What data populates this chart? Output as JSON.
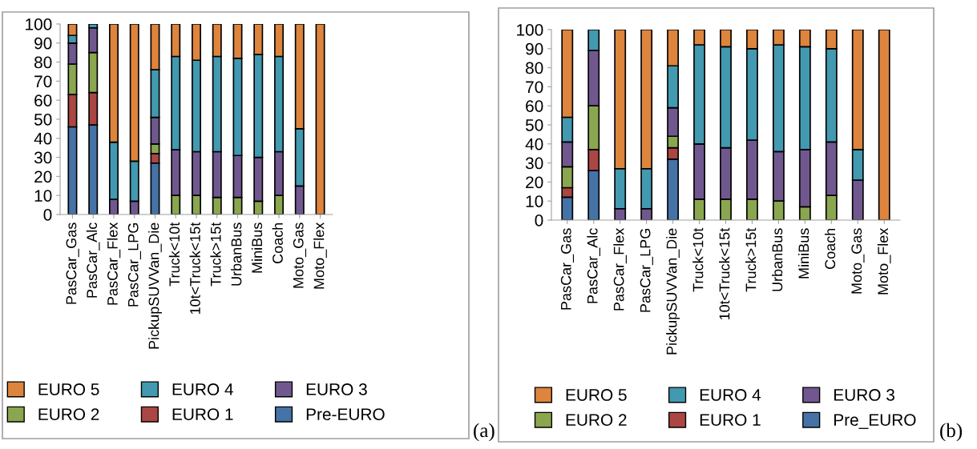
{
  "chart_data": [
    {
      "type": "bar",
      "stacked": true,
      "categories": [
        "PasCar_Gas",
        "PasCar_Alc",
        "PasCar_Flex",
        "PasCar_LPG",
        "PickupSUVVan_Die",
        "Truck<10t",
        "10t<Truck<15t",
        "Truck>15t",
        "UrbanBus",
        "MiniBus",
        "Coach",
        "Moto_Gas",
        "Moto_Flex"
      ],
      "ylim": [
        0,
        100
      ],
      "yticks": [
        0,
        10,
        20,
        30,
        40,
        50,
        60,
        70,
        80,
        90,
        100
      ],
      "grid": false,
      "legend": "bottom",
      "annotations": [
        "(a)"
      ],
      "series": [
        {
          "name": "Pre-EURO",
          "color": "#4573a7",
          "values": [
            46,
            47,
            0,
            0,
            27,
            0,
            0,
            0,
            0,
            0,
            0,
            0,
            0
          ]
        },
        {
          "name": "EURO 1",
          "color": "#aa4644",
          "values": [
            17,
            17,
            0,
            0,
            5,
            0,
            0,
            0,
            0,
            0,
            0,
            0,
            0
          ]
        },
        {
          "name": "EURO 2",
          "color": "#8aa64f",
          "values": [
            16,
            21,
            0,
            0,
            5,
            10,
            10,
            9,
            9,
            7,
            10,
            0,
            0
          ]
        },
        {
          "name": "EURO 3",
          "color": "#70588f",
          "values": [
            11,
            13,
            8,
            7,
            14,
            24,
            23,
            24,
            22,
            23,
            23,
            15,
            0
          ]
        },
        {
          "name": "EURO 4",
          "color": "#4299b0",
          "values": [
            4,
            2,
            30,
            21,
            25,
            49,
            48,
            50,
            51,
            54,
            50,
            30,
            0
          ]
        },
        {
          "name": "EURO 5",
          "color": "#dd843d",
          "values": [
            6,
            0,
            62,
            72,
            24,
            17,
            19,
            17,
            18,
            16,
            17,
            55,
            100
          ]
        }
      ]
    },
    {
      "type": "bar",
      "stacked": true,
      "categories": [
        "PasCar_Gas",
        "PasCar_Alc",
        "PasCar_Flex",
        "PasCar_LPG",
        "PickupSUVVan_Die",
        "Truck<10t",
        "10t<Truck<15t",
        "Truck>15t",
        "UrbanBus",
        "MiniBus",
        "Coach",
        "Moto_Gas",
        "Moto_Flex"
      ],
      "ylim": [
        0,
        100
      ],
      "yticks": [
        0,
        10,
        20,
        30,
        40,
        50,
        60,
        70,
        80,
        90,
        100
      ],
      "grid": false,
      "legend": "bottom",
      "annotations": [
        "(b)"
      ],
      "series": [
        {
          "name": "Pre_EURO",
          "color": "#4573a7",
          "values": [
            12,
            26,
            0,
            0,
            32,
            0,
            0,
            0,
            0,
            0,
            0,
            0,
            0
          ]
        },
        {
          "name": "EURO 1",
          "color": "#aa4644",
          "values": [
            5,
            11,
            0,
            0,
            6,
            0,
            0,
            0,
            0,
            0,
            0,
            0,
            0
          ]
        },
        {
          "name": "EURO 2",
          "color": "#8aa64f",
          "values": [
            11,
            23,
            0,
            0,
            6,
            11,
            11,
            11,
            10,
            7,
            13,
            0,
            0
          ]
        },
        {
          "name": "EURO 3",
          "color": "#70588f",
          "values": [
            13,
            29,
            6,
            6,
            15,
            29,
            27,
            31,
            26,
            30,
            28,
            21,
            0
          ]
        },
        {
          "name": "EURO 4",
          "color": "#4299b0",
          "values": [
            13,
            11,
            21,
            21,
            22,
            52,
            53,
            48,
            56,
            54,
            49,
            16,
            0
          ]
        },
        {
          "name": "EURO 5",
          "color": "#dd843d",
          "values": [
            46,
            0,
            73,
            73,
            19,
            8,
            9,
            10,
            8,
            9,
            10,
            63,
            100
          ]
        }
      ]
    }
  ]
}
